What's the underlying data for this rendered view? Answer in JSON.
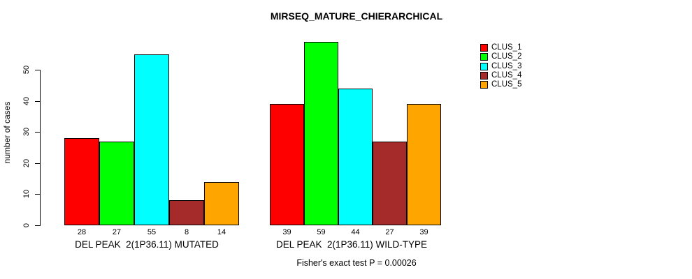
{
  "chart_data": {
    "type": "bar",
    "title": "MIRSEQ_MATURE_CHIERARCHICAL",
    "ylabel": "number of cases",
    "yticks": [
      0,
      10,
      20,
      30,
      40,
      50
    ],
    "ylim": [
      0,
      59
    ],
    "grid": false,
    "legend_position": "right",
    "legend": [
      {
        "label": "CLUS_1",
        "color": "#FF0000"
      },
      {
        "label": "CLUS_2",
        "color": "#00FF00"
      },
      {
        "label": "CLUS_3",
        "color": "#00FFFF"
      },
      {
        "label": "CLUS_4",
        "color": "#A52A2A"
      },
      {
        "label": "CLUS_5",
        "color": "#FFA500"
      }
    ],
    "groups": [
      {
        "label": "DEL PEAK  2(1P36.11) MUTATED",
        "values": [
          28,
          27,
          55,
          8,
          14
        ]
      },
      {
        "label": "DEL PEAK  2(1P36.11) WILD-TYPE",
        "values": [
          39,
          59,
          44,
          27,
          39
        ]
      }
    ],
    "annotation": "Fisher's exact test P = 0.00026"
  }
}
